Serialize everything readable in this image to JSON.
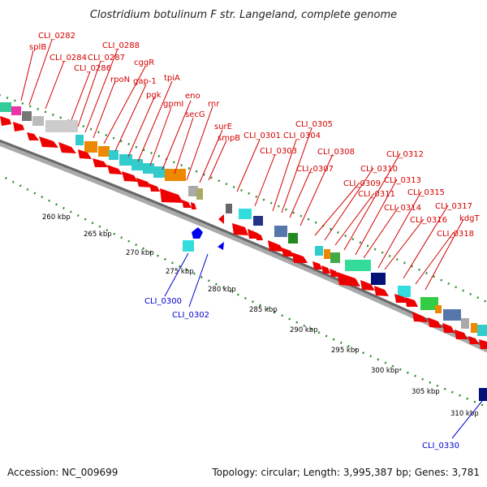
{
  "title": "Clostridium botulinum F str. Langeland, complete genome",
  "footer": {
    "accession": "Accession: NC_009699",
    "topology": "Topology: circular; Length: 3,995,387 bp; Genes: 3,781"
  },
  "colors": {
    "forward_arrow": "#ee0000",
    "reverse_arrow": "#0000ee",
    "forward_label": "#d40000",
    "reverse_label": "#0000cc",
    "tick": "#2f8f2f",
    "backbone": "#888888"
  },
  "kbp_ticks": [
    "260 kbp",
    "265 kbp",
    "270 kbp",
    "275 kbp",
    "280 kbp",
    "285 kbp",
    "290 kbp",
    "295 kbp",
    "300 kbp",
    "305 kbp",
    "310 kbp"
  ],
  "forward_genes": [
    "splB",
    "CLI_0282",
    "CLI_0284",
    "CLI_0286",
    "CLI_0287",
    "CLI_0288",
    "rpoN",
    "cggR",
    "gap-1",
    "pgk",
    "tpiA",
    "gpmI",
    "eno",
    "secG",
    "rnr",
    "surE",
    "smpB",
    "CLI_0301",
    "CLI_0303",
    "CLI_0304",
    "CLI_0305",
    "CLI_0307",
    "CLI_0308",
    "CLI_0309",
    "CLI_0310",
    "CLI_0311",
    "CLI_0312",
    "CLI_0313",
    "CLI_0314",
    "CLI_0315",
    "CLI_0316",
    "CLI_0317",
    "CLI_0318",
    "kdgT"
  ],
  "reverse_genes": [
    "CLI_0300",
    "CLI_0302",
    "CLI_0330"
  ]
}
